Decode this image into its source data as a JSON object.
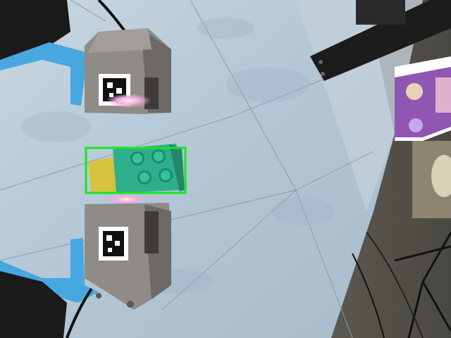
{
  "scene": {
    "subject": "robot-gripper-holding-block",
    "colors": {
      "board": "#b9cbd8",
      "board_shadow": "#9fb4c6",
      "grid_line": "#8a98a4",
      "gripper_body": "#8d8a86",
      "gripper_dark": "#5b5855",
      "block_green": "#2fae8c",
      "block_yellow": "#d8c43a",
      "strap_blue": "#4aa9e0",
      "bracket_black": "#1b1b1b",
      "box_purple": "#7b3aa3",
      "floor": "#6e6b63",
      "detection_box": "#19e619"
    }
  },
  "detection": {
    "object": "block"
  }
}
